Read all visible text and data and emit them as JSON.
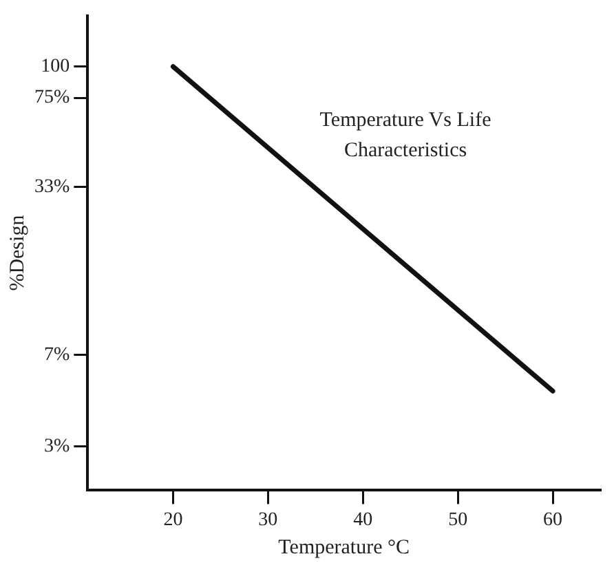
{
  "chart_data": {
    "type": "line",
    "xlabel": "Temperature °C",
    "ylabel": "%Design",
    "annotations": [
      "Temperature Vs Life Characteristics"
    ],
    "x": [
      20,
      60
    ],
    "series": [
      {
        "color": "#111111",
        "values": [
          100,
          5
        ]
      }
    ],
    "log": "y",
    "xlim": [
      11,
      65
    ],
    "xticks": [
      20,
      30,
      40,
      50,
      60
    ],
    "ylim": [
      2,
      160
    ],
    "yticks": [
      100,
      {
        "value": 75,
        "label": "75%"
      },
      {
        "value": 33,
        "label": "33%"
      },
      {
        "value": 7,
        "label": "7%"
      },
      {
        "value": 3,
        "label": "3%"
      }
    ],
    "grid": false,
    "legend": false,
    "marker": "none",
    "line_style": "solid"
  }
}
